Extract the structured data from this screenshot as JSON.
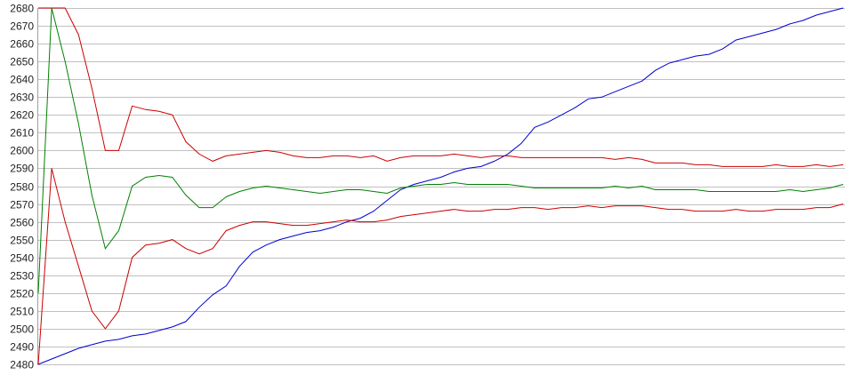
{
  "chart_data": {
    "type": "line",
    "title": "",
    "xlabel": "",
    "ylabel": "",
    "ylim": [
      2480,
      2680
    ],
    "xlim": [
      0,
      60
    ],
    "yticks": [
      2480,
      2490,
      2500,
      2510,
      2520,
      2530,
      2540,
      2550,
      2560,
      2570,
      2580,
      2590,
      2600,
      2610,
      2620,
      2630,
      2640,
      2650,
      2660,
      2670,
      2680
    ],
    "grid": "horizontal",
    "legend": "none",
    "x": [
      0,
      1,
      2,
      3,
      4,
      5,
      6,
      7,
      8,
      9,
      10,
      11,
      12,
      13,
      14,
      15,
      16,
      17,
      18,
      19,
      20,
      21,
      22,
      23,
      24,
      25,
      26,
      27,
      28,
      29,
      30,
      31,
      32,
      33,
      34,
      35,
      36,
      37,
      38,
      39,
      40,
      41,
      42,
      43,
      44,
      45,
      46,
      47,
      48,
      49,
      50,
      51,
      52,
      53,
      54,
      55,
      56,
      57,
      58,
      59,
      60
    ],
    "series": [
      {
        "color": "#0000cc",
        "values": [
          2480,
          2483,
          2486,
          2489,
          2491,
          2493,
          2494,
          2496,
          2497,
          2499,
          2501,
          2504,
          2512,
          2519,
          2524,
          2535,
          2543,
          2547,
          2550,
          2552,
          2554,
          2555,
          2557,
          2560,
          2562,
          2566,
          2572,
          2578,
          2581,
          2583,
          2585,
          2588,
          2590,
          2591,
          2594,
          2598,
          2604,
          2613,
          2616,
          2620,
          2624,
          2629,
          2630,
          2633,
          2636,
          2639,
          2645,
          2649,
          2651,
          2653,
          2654,
          2657,
          2662,
          2664,
          2666,
          2668,
          2671,
          2673,
          2676,
          2678,
          2680
        ]
      },
      {
        "color": "#cc0000",
        "values": [
          2680,
          2680,
          2680,
          2665,
          2635,
          2600,
          2600,
          2625,
          2623,
          2622,
          2620,
          2605,
          2598,
          2594,
          2597,
          2598,
          2599,
          2600,
          2599,
          2597,
          2596,
          2596,
          2597,
          2597,
          2596,
          2597,
          2594,
          2596,
          2597,
          2597,
          2597,
          2598,
          2597,
          2596,
          2597,
          2597,
          2596,
          2596,
          2596,
          2596,
          2596,
          2596,
          2596,
          2595,
          2596,
          2595,
          2593,
          2593,
          2593,
          2592,
          2592,
          2591,
          2591,
          2591,
          2591,
          2592,
          2591,
          2591,
          2592,
          2591,
          2592
        ]
      },
      {
        "color": "#008000",
        "values": [
          2520,
          2680,
          2650,
          2615,
          2575,
          2545,
          2555,
          2580,
          2585,
          2586,
          2585,
          2575,
          2568,
          2568,
          2574,
          2577,
          2579,
          2580,
          2579,
          2578,
          2577,
          2576,
          2577,
          2578,
          2578,
          2577,
          2576,
          2579,
          2580,
          2581,
          2581,
          2582,
          2581,
          2581,
          2581,
          2581,
          2580,
          2579,
          2579,
          2579,
          2579,
          2579,
          2579,
          2580,
          2579,
          2580,
          2578,
          2578,
          2578,
          2578,
          2577,
          2577,
          2577,
          2577,
          2577,
          2577,
          2578,
          2577,
          2578,
          2579,
          2581
        ]
      },
      {
        "color": "#cc0000",
        "values": [
          2480,
          2590,
          2560,
          2535,
          2510,
          2500,
          2510,
          2540,
          2547,
          2548,
          2550,
          2545,
          2542,
          2545,
          2555,
          2558,
          2560,
          2560,
          2559,
          2558,
          2558,
          2559,
          2560,
          2561,
          2560,
          2560,
          2561,
          2563,
          2564,
          2565,
          2566,
          2567,
          2566,
          2566,
          2567,
          2567,
          2568,
          2568,
          2567,
          2568,
          2568,
          2569,
          2568,
          2569,
          2569,
          2569,
          2568,
          2567,
          2567,
          2566,
          2566,
          2566,
          2567,
          2566,
          2566,
          2567,
          2567,
          2567,
          2568,
          2568,
          2570
        ]
      }
    ]
  }
}
